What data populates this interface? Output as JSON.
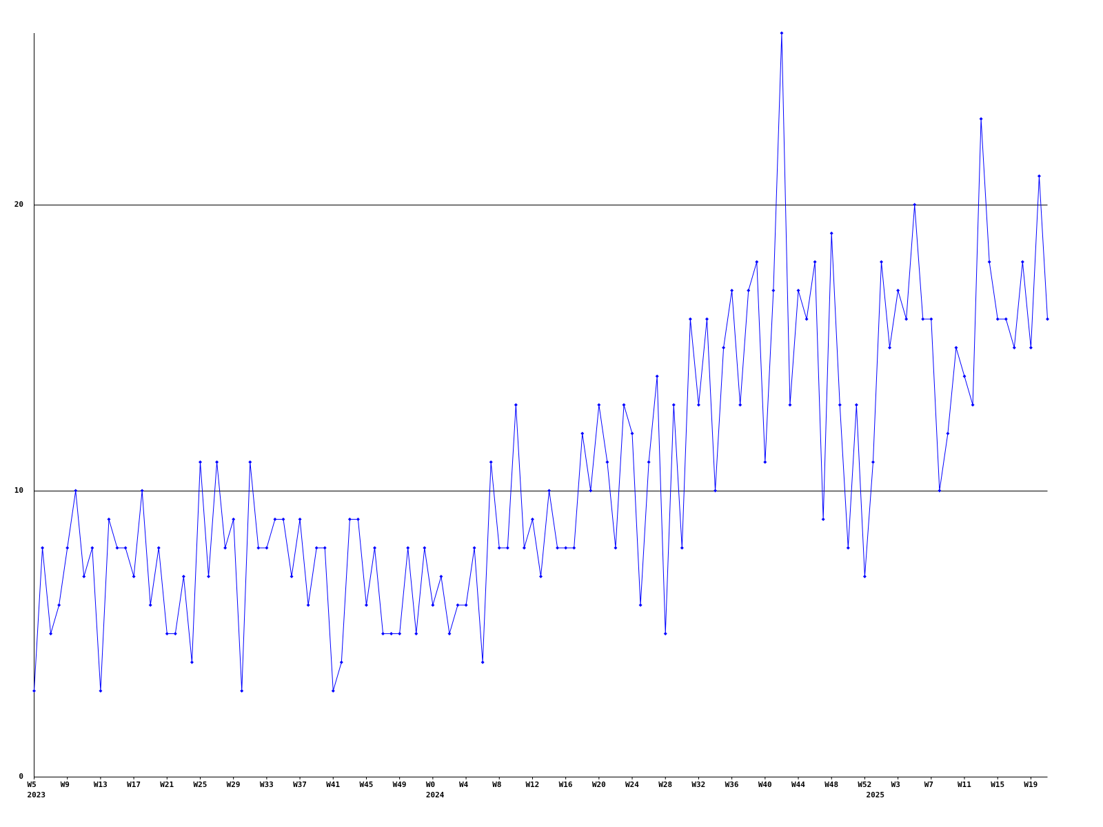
{
  "chart_data": {
    "type": "line",
    "categories": [
      "W5",
      null,
      null,
      null,
      "W9",
      null,
      null,
      null,
      "W13",
      null,
      null,
      null,
      "W17",
      null,
      null,
      null,
      "W21",
      null,
      null,
      null,
      "W25",
      null,
      null,
      null,
      "W29",
      null,
      null,
      null,
      "W33",
      null,
      null,
      null,
      "W37",
      null,
      null,
      null,
      "W41",
      null,
      null,
      null,
      "W45",
      null,
      null,
      null,
      "W49",
      null,
      null,
      null,
      "W0",
      null,
      null,
      null,
      "W4",
      null,
      null,
      null,
      "W8",
      null,
      null,
      null,
      "W12",
      null,
      null,
      null,
      "W16",
      null,
      null,
      null,
      "W20",
      null,
      null,
      null,
      "W24",
      null,
      null,
      null,
      "W28",
      null,
      null,
      null,
      "W32",
      null,
      null,
      null,
      "W36",
      null,
      null,
      null,
      "W40",
      null,
      null,
      null,
      "W44",
      null,
      null,
      null,
      "W48",
      null,
      null,
      null,
      "W52",
      null,
      null,
      null,
      "W3",
      null,
      null,
      null,
      "W7",
      null,
      null,
      null,
      "W11",
      null,
      null,
      null,
      "W15",
      null,
      null,
      null,
      "W19",
      null,
      null
    ],
    "year_labels": [
      {
        "label": "2023",
        "index": 0
      },
      {
        "label": "2024",
        "index": 48
      },
      {
        "label": "2025",
        "index": 101
      }
    ],
    "series": [
      {
        "color": "#0000ff",
        "values": [
          3,
          8,
          5,
          6,
          8,
          10,
          7,
          8,
          3,
          9,
          8,
          8,
          7,
          10,
          6,
          8,
          5,
          5,
          7,
          4,
          11,
          7,
          11,
          8,
          9,
          3,
          11,
          8,
          8,
          9,
          9,
          7,
          9,
          6,
          8,
          8,
          3,
          4,
          9,
          9,
          6,
          8,
          5,
          5,
          5,
          8,
          5,
          8,
          6,
          7,
          5,
          6,
          6,
          8,
          4,
          11,
          8,
          8,
          13,
          8,
          9,
          7,
          10,
          8,
          8,
          8,
          12,
          10,
          13,
          11,
          8,
          13,
          12,
          6,
          11,
          14,
          5,
          13,
          8,
          16,
          13,
          16,
          10,
          15,
          17,
          13,
          17,
          18,
          11,
          17,
          26,
          13,
          17,
          16,
          18,
          9,
          19,
          13,
          8,
          13,
          7,
          11,
          18,
          15,
          17,
          16,
          20,
          16,
          16,
          10,
          12,
          15,
          14,
          13,
          23,
          18,
          16,
          16,
          15,
          18,
          15,
          21,
          16
        ]
      }
    ],
    "ylim": [
      0,
      26
    ],
    "yticks": [
      0,
      10,
      20
    ],
    "grid": true
  }
}
